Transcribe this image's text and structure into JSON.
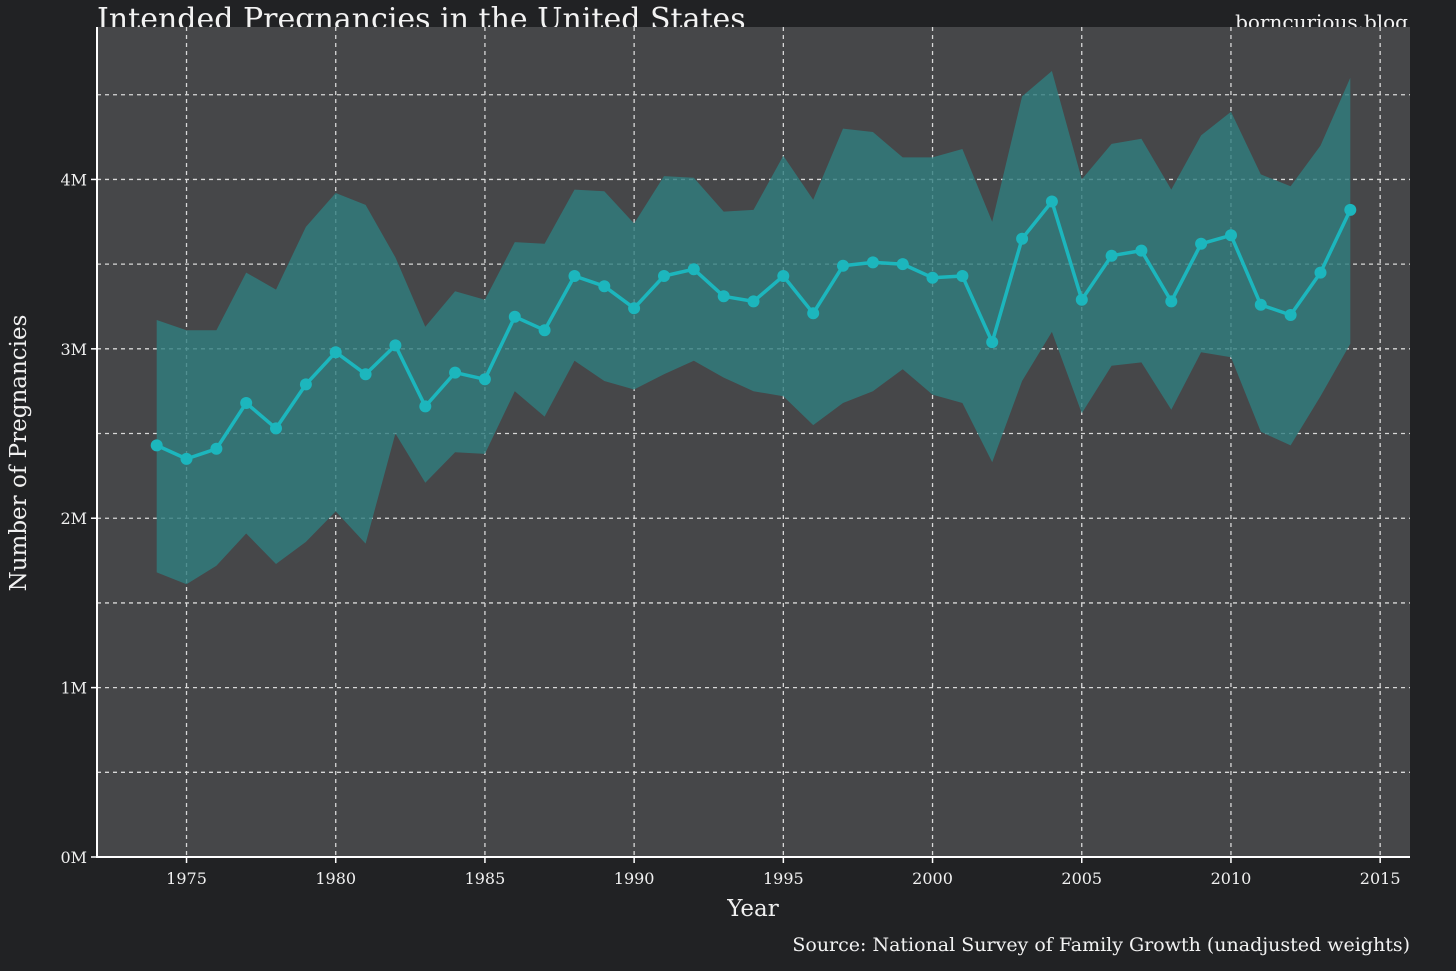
{
  "header": {
    "title": "Intended Pregnancies in the United States",
    "brand": "borncurious.blog"
  },
  "footer": {
    "source": "Source: National Survey of Family Growth (unadjusted weights)"
  },
  "colors": {
    "background": "#212224",
    "panel": "#464749",
    "line": "#1cb6bd",
    "band": "#2f7e80",
    "grid": "#d8d8d8"
  },
  "chart_data": {
    "type": "line",
    "title": "Intended Pregnancies in the United States",
    "xlabel": "Year",
    "ylabel": "Number of Pregnancies",
    "xlim": [
      1972,
      2016
    ],
    "ylim": [
      0,
      4.9
    ],
    "x_ticks": [
      1975,
      1980,
      1985,
      1990,
      1995,
      2000,
      2005,
      2010,
      2015
    ],
    "x_tick_labels": [
      "1975",
      "1980",
      "1985",
      "1990",
      "1995",
      "2000",
      "2005",
      "2010",
      "2015"
    ],
    "y_ticks": [
      0,
      1,
      2,
      3,
      4
    ],
    "y_tick_labels": [
      "0M",
      "1M",
      "2M",
      "3M",
      "4M"
    ],
    "y_minor_gridlines": [
      0.5,
      1.5,
      2.5,
      3.5,
      4.5
    ],
    "grid": true,
    "units": "millions",
    "series": [
      {
        "name": "Intended pregnancies",
        "x": [
          1974,
          1975,
          1976,
          1977,
          1978,
          1979,
          1980,
          1981,
          1982,
          1983,
          1984,
          1985,
          1986,
          1987,
          1988,
          1989,
          1990,
          1991,
          1992,
          1993,
          1994,
          1995,
          1996,
          1997,
          1998,
          1999,
          2000,
          2001,
          2002,
          2003,
          2004,
          2005,
          2006,
          2007,
          2008,
          2009,
          2010,
          2011,
          2012,
          2013,
          2014
        ],
        "values": [
          2.43,
          2.35,
          2.41,
          2.68,
          2.53,
          2.79,
          2.98,
          2.85,
          3.02,
          2.66,
          2.86,
          2.82,
          3.19,
          3.11,
          3.43,
          3.37,
          3.24,
          3.43,
          3.47,
          3.31,
          3.28,
          3.43,
          3.21,
          3.49,
          3.51,
          3.5,
          3.42,
          3.43,
          3.04,
          3.65,
          3.87,
          3.29,
          3.55,
          3.58,
          3.28,
          3.62,
          3.67,
          3.26,
          3.2,
          3.45,
          3.82
        ],
        "lower": [
          1.68,
          1.61,
          1.72,
          1.91,
          1.73,
          1.86,
          2.04,
          1.85,
          2.5,
          2.21,
          2.39,
          2.38,
          2.75,
          2.6,
          2.93,
          2.81,
          2.76,
          2.85,
          2.93,
          2.83,
          2.75,
          2.72,
          2.55,
          2.68,
          2.75,
          2.88,
          2.73,
          2.68,
          2.33,
          2.81,
          3.1,
          2.62,
          2.9,
          2.92,
          2.64,
          2.98,
          2.95,
          2.51,
          2.43,
          2.72,
          3.03
        ],
        "upper": [
          3.17,
          3.11,
          3.11,
          3.45,
          3.35,
          3.72,
          3.92,
          3.85,
          3.54,
          3.13,
          3.34,
          3.29,
          3.63,
          3.62,
          3.94,
          3.93,
          3.74,
          4.02,
          4.01,
          3.81,
          3.82,
          4.14,
          3.88,
          4.3,
          4.28,
          4.13,
          4.13,
          4.18,
          3.75,
          4.49,
          4.64,
          4.0,
          4.21,
          4.24,
          3.94,
          4.26,
          4.4,
          4.03,
          3.96,
          4.2,
          4.6
        ]
      }
    ]
  }
}
